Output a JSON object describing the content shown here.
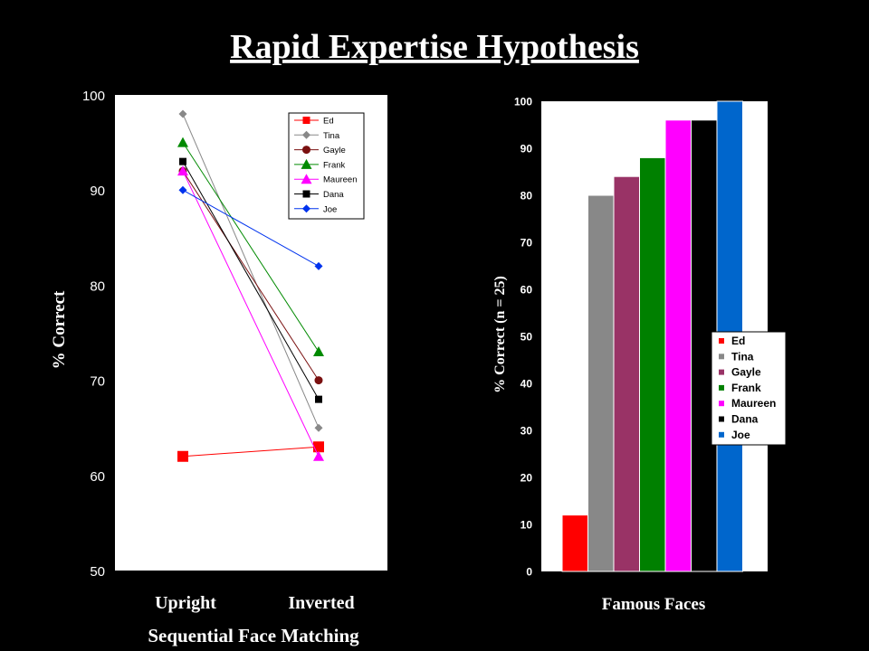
{
  "title": "Rapid Expertise Hypothesis",
  "colors": {
    "Ed": "#ff0000",
    "Tina": "#888888",
    "Gayle": "#7a1010",
    "Frank": "#008a00",
    "Maureen": "#ff00ff",
    "Dana": "#000000",
    "Joe": "#0033ee"
  },
  "chart_data": [
    {
      "type": "line",
      "title": "",
      "xlabel": "Sequential Face Matching",
      "ylabel": "% Correct",
      "categories": [
        "Upright",
        "Inverted"
      ],
      "ylim": [
        50,
        100
      ],
      "yticks": [
        "50",
        "60",
        "70",
        "80",
        "90",
        "100"
      ],
      "legend": "top-right",
      "series": [
        {
          "name": "Ed",
          "values": [
            62,
            63
          ],
          "marker": "square-large"
        },
        {
          "name": "Tina",
          "values": [
            98,
            65
          ],
          "marker": "diamond"
        },
        {
          "name": "Gayle",
          "values": [
            92,
            70
          ],
          "marker": "circle"
        },
        {
          "name": "Frank",
          "values": [
            95,
            73
          ],
          "marker": "triangle"
        },
        {
          "name": "Maureen",
          "values": [
            92,
            62
          ],
          "marker": "triangle"
        },
        {
          "name": "Dana",
          "values": [
            93,
            68
          ],
          "marker": "square"
        },
        {
          "name": "Joe",
          "values": [
            90,
            82
          ],
          "marker": "diamond"
        }
      ]
    },
    {
      "type": "bar",
      "title": "",
      "xlabel": "Famous Faces",
      "ylabel": "% Correct  (n = 25)",
      "ylim": [
        0,
        100
      ],
      "yticks": [
        "0",
        "10",
        "20",
        "30",
        "40",
        "50",
        "60",
        "70",
        "80",
        "90",
        "100"
      ],
      "legend": "right",
      "series": [
        {
          "name": "Ed",
          "value": 12,
          "color": "#ff0000"
        },
        {
          "name": "Tina",
          "value": 80,
          "color": "#888888"
        },
        {
          "name": "Gayle",
          "value": 84,
          "color": "#993366"
        },
        {
          "name": "Frank",
          "value": 88,
          "color": "#008000"
        },
        {
          "name": "Maureen",
          "value": 96,
          "color": "#ff00ff"
        },
        {
          "name": "Dana",
          "value": 96,
          "color": "#000000"
        },
        {
          "name": "Joe",
          "value": 100,
          "color": "#0066cc"
        }
      ]
    }
  ]
}
